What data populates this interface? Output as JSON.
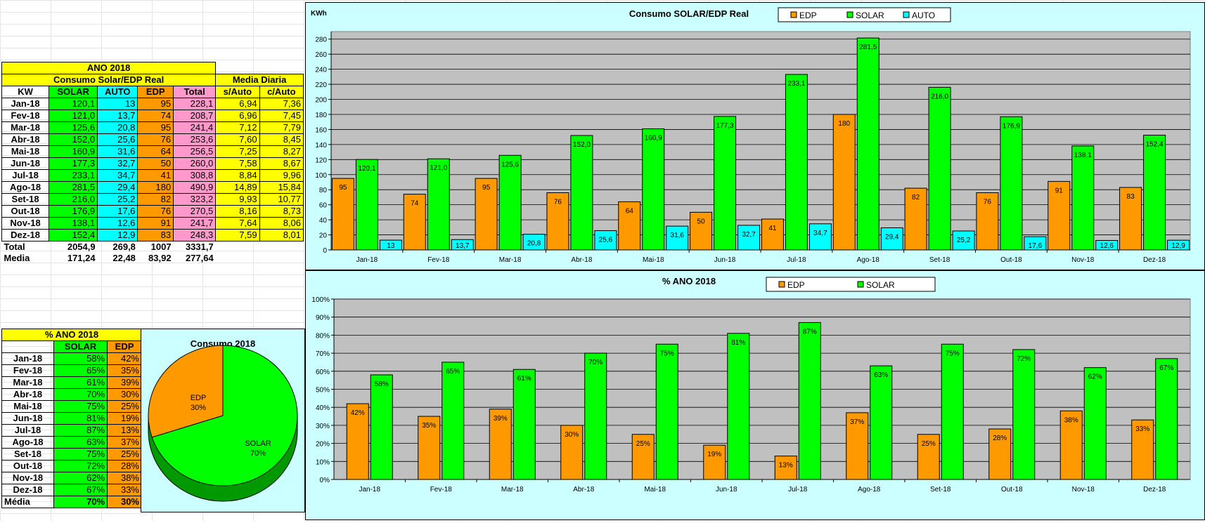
{
  "monthly": {
    "title": "ANO 2018",
    "subtitle": "Consumo Solar/EDP Real",
    "media_diaria": "Media Diaria",
    "headers": [
      "KW",
      "SOLAR",
      "AUTO",
      "EDP",
      "Total",
      "s/Auto",
      "c/Auto"
    ],
    "rows": [
      [
        "Jan-18",
        "120,1",
        "13",
        "95",
        "228,1",
        "6,94",
        "7,36"
      ],
      [
        "Fev-18",
        "121,0",
        "13,7",
        "74",
        "208,7",
        "6,96",
        "7,45"
      ],
      [
        "Mar-18",
        "125,6",
        "20,8",
        "95",
        "241,4",
        "7,12",
        "7,79"
      ],
      [
        "Abr-18",
        "152,0",
        "25,6",
        "76",
        "253,6",
        "7,60",
        "8,45"
      ],
      [
        "Mai-18",
        "160,9",
        "31,6",
        "64",
        "256,5",
        "7,25",
        "8,27"
      ],
      [
        "Jun-18",
        "177,3",
        "32,7",
        "50",
        "260,0",
        "7,58",
        "8,67"
      ],
      [
        "Jul-18",
        "233,1",
        "34,7",
        "41",
        "308,8",
        "8,84",
        "9,96"
      ],
      [
        "Ago-18",
        "281,5",
        "29,4",
        "180",
        "490,9",
        "14,89",
        "15,84"
      ],
      [
        "Set-18",
        "216,0",
        "25,2",
        "82",
        "323,2",
        "9,93",
        "10,77"
      ],
      [
        "Out-18",
        "176,9",
        "17,6",
        "76",
        "270,5",
        "8,16",
        "8,73"
      ],
      [
        "Nov-18",
        "138,1",
        "12,6",
        "91",
        "241,7",
        "7,64",
        "8,06"
      ],
      [
        "Dez-18",
        "152,4",
        "12,9",
        "83",
        "248,3",
        "7,59",
        "8,01"
      ]
    ],
    "total": [
      "Total",
      "2054,9",
      "269,8",
      "1007",
      "3331,7"
    ],
    "media": [
      "Media",
      "171,24",
      "22,48",
      "83,92",
      "277,64"
    ]
  },
  "percent": {
    "title": "% ANO 2018",
    "headers": [
      "SOLAR",
      "EDP"
    ],
    "rows": [
      [
        "Jan-18",
        "58%",
        "42%"
      ],
      [
        "Fev-18",
        "65%",
        "35%"
      ],
      [
        "Mar-18",
        "61%",
        "39%"
      ],
      [
        "Abr-18",
        "70%",
        "30%"
      ],
      [
        "Mai-18",
        "75%",
        "25%"
      ],
      [
        "Jun-18",
        "81%",
        "19%"
      ],
      [
        "Jul-18",
        "87%",
        "13%"
      ],
      [
        "Ago-18",
        "63%",
        "37%"
      ],
      [
        "Set-18",
        "75%",
        "25%"
      ],
      [
        "Out-18",
        "72%",
        "28%"
      ],
      [
        "Nov-18",
        "62%",
        "38%"
      ],
      [
        "Dez-18",
        "67%",
        "33%"
      ]
    ],
    "media": [
      "Média",
      "70%",
      "30%"
    ]
  },
  "colors": {
    "edp": "#ff9900",
    "solar": "#00ff00",
    "auto": "#00ffff",
    "plot": "#c0c0c0",
    "panel": "#ccffff"
  },
  "chart_data": [
    {
      "type": "bar",
      "title": "Consumo SOLAR/EDP Real",
      "ylabel": "KWh",
      "categories": [
        "Jan-18",
        "Fev-18",
        "Mar-18",
        "Abr-18",
        "Mai-18",
        "Jun-18",
        "Jul-18",
        "Ago-18",
        "Set-18",
        "Out-18",
        "Nov-18",
        "Dez-18"
      ],
      "series": [
        {
          "name": "EDP",
          "values": [
            95,
            74,
            95,
            76,
            64,
            50,
            41,
            180,
            82,
            76,
            91,
            83
          ],
          "labels": [
            "95",
            "74",
            "95",
            "76",
            "64",
            "50",
            "41",
            "180",
            "82",
            "76",
            "91",
            "83"
          ]
        },
        {
          "name": "SOLAR",
          "values": [
            120.1,
            121.0,
            125.6,
            152.0,
            160.9,
            177.3,
            233.1,
            281.5,
            216.0,
            176.9,
            138.1,
            152.4
          ],
          "labels": [
            "120,1",
            "121,0",
            "125,6",
            "152,0",
            "160,9",
            "177,3",
            "233,1",
            "281,5",
            "216,0",
            "176,9",
            "138,1",
            "152,4"
          ]
        },
        {
          "name": "AUTO",
          "values": [
            13,
            13.7,
            20.8,
            25.6,
            31.6,
            32.7,
            34.7,
            29.4,
            25.2,
            17.6,
            12.6,
            12.9
          ],
          "labels": [
            "13",
            "13,7",
            "20,8",
            "25,6",
            "31,6",
            "32,7",
            "34,7",
            "29,4",
            "25,2",
            "17,6",
            "12,6",
            "12,9"
          ]
        }
      ],
      "ylim": [
        0,
        290
      ],
      "yticks": [
        0,
        20,
        40,
        60,
        80,
        100,
        120,
        140,
        160,
        180,
        200,
        220,
        240,
        260,
        280
      ],
      "legend": "top-right",
      "grid": true
    },
    {
      "type": "bar",
      "title": "% ANO 2018",
      "categories": [
        "Jan-18",
        "Fev-18",
        "Mar-18",
        "Abr-18",
        "Mai-18",
        "Jun-18",
        "Jul-18",
        "Ago-18",
        "Set-18",
        "Out-18",
        "Nov-18",
        "Dez-18"
      ],
      "series": [
        {
          "name": "EDP",
          "values": [
            42,
            35,
            39,
            30,
            25,
            19,
            13,
            37,
            25,
            28,
            38,
            33
          ],
          "labels": [
            "42%",
            "35%",
            "39%",
            "30%",
            "25%",
            "19%",
            "13%",
            "37%",
            "25%",
            "28%",
            "38%",
            "33%"
          ]
        },
        {
          "name": "SOLAR",
          "values": [
            58,
            65,
            61,
            70,
            75,
            81,
            87,
            63,
            75,
            72,
            62,
            67
          ],
          "labels": [
            "58%",
            "65%",
            "61%",
            "70%",
            "75%",
            "81%",
            "87%",
            "63%",
            "75%",
            "72%",
            "62%",
            "67%"
          ]
        }
      ],
      "ylim": [
        0,
        100
      ],
      "yticks": [
        "0%",
        "10%",
        "20%",
        "30%",
        "40%",
        "50%",
        "60%",
        "70%",
        "80%",
        "90%",
        "100%"
      ],
      "legend": "top-right",
      "grid": true
    },
    {
      "type": "pie",
      "title": "Consumo 2018",
      "slices": [
        {
          "name": "EDP",
          "value": 30,
          "label": "30%"
        },
        {
          "name": "SOLAR",
          "value": 70,
          "label": "70%"
        }
      ]
    }
  ]
}
